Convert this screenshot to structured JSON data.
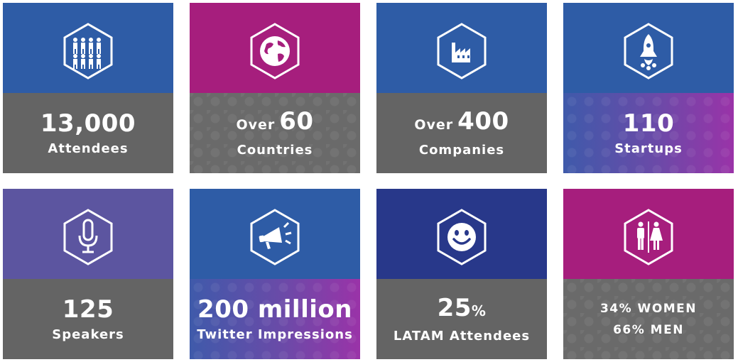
{
  "tiles": [
    {
      "icon": "people-group-icon",
      "number": "13,000",
      "label": "Attendees"
    },
    {
      "icon": "globe-icon",
      "prefix": "Over",
      "number": "60",
      "label": "Countries"
    },
    {
      "icon": "factory-icon",
      "prefix": "Over",
      "number": "400",
      "label": "Companies"
    },
    {
      "icon": "rocket-icon",
      "number": "110",
      "label": "Startups"
    },
    {
      "icon": "microphone-icon",
      "number": "125",
      "label": "Speakers"
    },
    {
      "icon": "megaphone-icon",
      "number": "200 million",
      "label": "Twitter Impressions"
    },
    {
      "icon": "smiley-icon",
      "number": "25",
      "suffix": "%",
      "label": "LATAM Attendees"
    },
    {
      "icon": "restroom-icon",
      "line1": "34% WOMEN",
      "line2": "66% MEN"
    }
  ],
  "colors": {
    "blue": "#2e5ca6",
    "magenta": "#a61e7d",
    "indigo": "#28388a",
    "violet": "#5c55a0",
    "gray": "#646464"
  }
}
